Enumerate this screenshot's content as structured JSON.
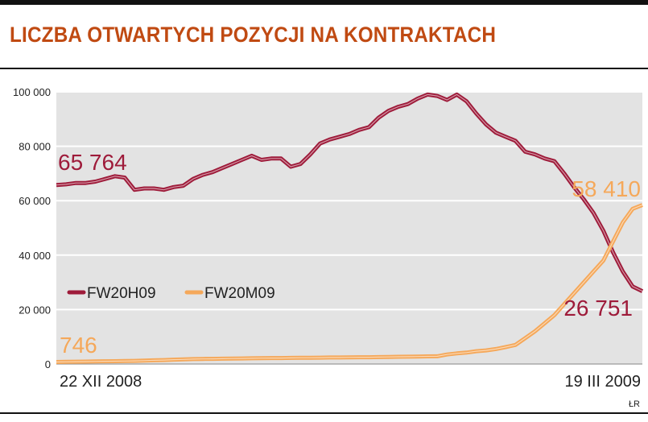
{
  "title": "LICZBA OTWARTYCH POZYCJI NA KONTRAKTACH",
  "credit": "ŁR",
  "colors": {
    "title": "#c04a12",
    "FW20H09": "#9e1b3a",
    "FW20M09": "#f5a85a",
    "plot_bg": "#e3e3e3",
    "grid": "#ffffff"
  },
  "chart_data": {
    "type": "line",
    "title": "LICZBA OTWARTYCH POZYCJI NA KONTRAKTACH",
    "xlabel": "",
    "ylabel": "",
    "ylim": [
      0,
      100000
    ],
    "y_ticks": [
      0,
      20000,
      40000,
      60000,
      80000,
      100000
    ],
    "y_tick_labels": [
      "0",
      "20 000",
      "40 000",
      "60 000",
      "80 000",
      "100 000"
    ],
    "x_ticks_labels": [
      "22 XII 2008",
      "19 III 2009"
    ],
    "grid": true,
    "legend_position": "center-left",
    "series": [
      {
        "name": "FW20H09",
        "color": "#9e1b3a",
        "start_label": "65 764",
        "end_label": "26 751",
        "values": [
          65764,
          66000,
          66500,
          66500,
          67000,
          68000,
          69000,
          68500,
          64000,
          64500,
          64500,
          64000,
          65000,
          65500,
          68000,
          69500,
          70500,
          72000,
          73500,
          75000,
          76500,
          75000,
          75500,
          75500,
          72500,
          73500,
          77000,
          81000,
          82500,
          83500,
          84500,
          86000,
          87000,
          90500,
          93000,
          94500,
          95500,
          97500,
          99000,
          98500,
          97000,
          99000,
          96500,
          92000,
          88000,
          85000,
          83500,
          82000,
          78000,
          77000,
          75500,
          74500,
          70000,
          65000,
          60500,
          55500,
          49000,
          41000,
          34000,
          28500,
          26751
        ]
      },
      {
        "name": "FW20M09",
        "color": "#f5a85a",
        "start_label": "746",
        "end_label": "58 410",
        "values": [
          746,
          800,
          850,
          900,
          950,
          1000,
          1050,
          1100,
          1150,
          1250,
          1350,
          1450,
          1600,
          1700,
          1800,
          1850,
          1900,
          1950,
          2000,
          2050,
          2100,
          2150,
          2200,
          2200,
          2250,
          2300,
          2300,
          2350,
          2400,
          2400,
          2450,
          2500,
          2500,
          2550,
          2600,
          2650,
          2700,
          2750,
          2800,
          2850,
          3500,
          3900,
          4200,
          4700,
          5000,
          5500,
          6200,
          7000,
          9500,
          12000,
          15000,
          18000,
          22000,
          26000,
          30000,
          34000,
          38000,
          45000,
          52000,
          57000,
          58410
        ]
      }
    ]
  }
}
